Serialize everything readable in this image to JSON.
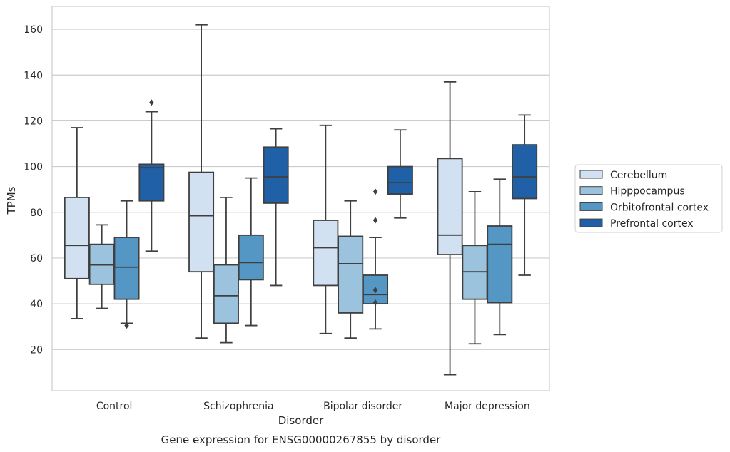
{
  "chart_data": {
    "type": "box",
    "title": "",
    "caption": "Gene expression for ENSG00000267855 by disorder",
    "xlabel": "Disorder",
    "ylabel": "TPMs",
    "ylim": [
      2,
      170
    ],
    "yticks": [
      20,
      40,
      60,
      80,
      100,
      120,
      140,
      160
    ],
    "grid": "horizontal",
    "legend_position": "right",
    "categories": [
      "Control",
      "Schizophrenia",
      "Bipolar disorder",
      "Major depression"
    ],
    "series": [
      {
        "name": "Cerebellum",
        "color": "#d1e1f1",
        "boxes": [
          {
            "whislo": 33.5,
            "q1": 51,
            "med": 65.5,
            "q3": 86.5,
            "whishi": 117,
            "fliers": []
          },
          {
            "whislo": 25,
            "q1": 54,
            "med": 78.5,
            "q3": 97.5,
            "whishi": 162,
            "fliers": []
          },
          {
            "whislo": 27,
            "q1": 48,
            "med": 64.5,
            "q3": 76.5,
            "whishi": 118,
            "fliers": []
          },
          {
            "whislo": 9,
            "q1": 61.5,
            "med": 70,
            "q3": 103.5,
            "whishi": 137,
            "fliers": []
          }
        ]
      },
      {
        "name": "Hipppocampus",
        "color": "#9cc3dd",
        "boxes": [
          {
            "whislo": 38,
            "q1": 48.5,
            "med": 57,
            "q3": 66,
            "whishi": 74.5,
            "fliers": []
          },
          {
            "whislo": 23,
            "q1": 31.5,
            "med": 43.5,
            "q3": 57,
            "whishi": 86.5,
            "fliers": []
          },
          {
            "whislo": 25,
            "q1": 36,
            "med": 57.5,
            "q3": 69.5,
            "whishi": 85,
            "fliers": []
          },
          {
            "whislo": 22.5,
            "q1": 42,
            "med": 54,
            "q3": 65.5,
            "whishi": 89,
            "fliers": []
          }
        ]
      },
      {
        "name": "Orbitofrontal cortex",
        "color": "#5496c4",
        "boxes": [
          {
            "whislo": 31.5,
            "q1": 42,
            "med": 56,
            "q3": 69,
            "whishi": 85,
            "fliers": [
              30.5
            ]
          },
          {
            "whislo": 30.5,
            "q1": 50.5,
            "med": 58,
            "q3": 70,
            "whishi": 95,
            "fliers": []
          },
          {
            "whislo": 29,
            "q1": 40,
            "med": 44,
            "q3": 52.5,
            "whishi": 69,
            "fliers": [
              89,
              76.5,
              46,
              40.5
            ]
          },
          {
            "whislo": 26.5,
            "q1": 40.5,
            "med": 66,
            "q3": 74,
            "whishi": 94.5,
            "fliers": []
          }
        ]
      },
      {
        "name": "Prefrontal cortex",
        "color": "#2060a6",
        "boxes": [
          {
            "whislo": 63,
            "q1": 85,
            "med": 99.5,
            "q3": 101,
            "whishi": 124,
            "fliers": [
              128
            ]
          },
          {
            "whislo": 48,
            "q1": 84,
            "med": 95.5,
            "q3": 108.5,
            "whishi": 116.5,
            "fliers": []
          },
          {
            "whislo": 77.5,
            "q1": 88,
            "med": 93,
            "q3": 100,
            "whishi": 116,
            "fliers": []
          },
          {
            "whislo": 52.5,
            "q1": 86,
            "med": 95.5,
            "q3": 109.5,
            "whishi": 122.5,
            "fliers": []
          }
        ]
      }
    ]
  }
}
